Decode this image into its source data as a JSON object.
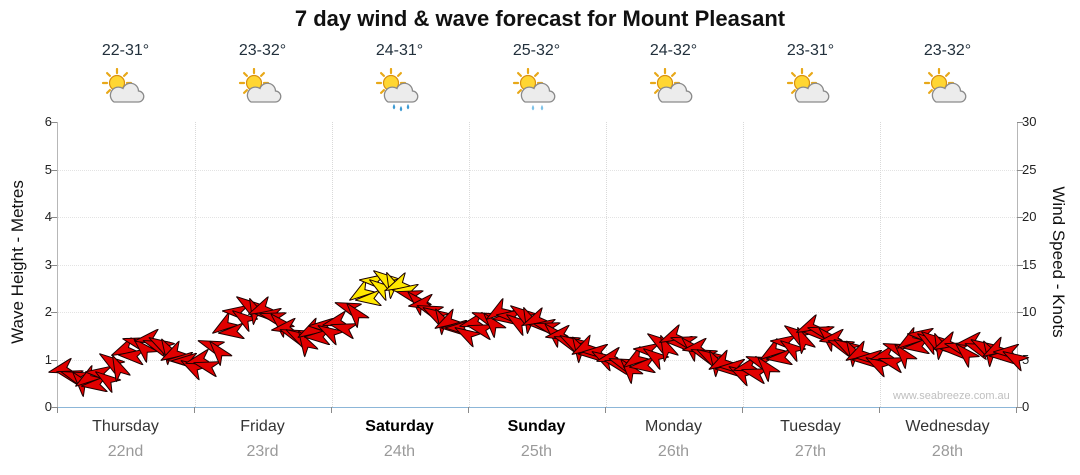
{
  "title": "7 day wind & wave forecast for Mount Pleasant",
  "watermark": "www.seabreeze.com.au",
  "axes": {
    "left_label": "Wave Height - Metres",
    "right_label": "Wind Speed - Knots",
    "left_ticks": [
      0,
      1,
      2,
      3,
      4,
      5,
      6
    ],
    "right_ticks": [
      0,
      5,
      10,
      15,
      20,
      25,
      30
    ]
  },
  "days": [
    {
      "name": "Thursday",
      "date": "22nd",
      "temp": "22-31°",
      "icon": "partly-cloudy",
      "bold": false
    },
    {
      "name": "Friday",
      "date": "23rd",
      "temp": "23-32°",
      "icon": "partly-cloudy",
      "bold": false
    },
    {
      "name": "Saturday",
      "date": "24th",
      "temp": "24-31°",
      "icon": "partly-cloudy-rain",
      "bold": true
    },
    {
      "name": "Sunday",
      "date": "25th",
      "temp": "25-32°",
      "icon": "partly-cloudy-shower",
      "bold": true
    },
    {
      "name": "Monday",
      "date": "26th",
      "temp": "24-32°",
      "icon": "partly-cloudy",
      "bold": false
    },
    {
      "name": "Tuesday",
      "date": "27th",
      "temp": "23-31°",
      "icon": "partly-cloudy",
      "bold": false
    },
    {
      "name": "Wednesday",
      "date": "28th",
      "temp": "23-32°",
      "icon": "partly-cloudy",
      "bold": false
    }
  ],
  "chart_data": {
    "type": "scatter",
    "marker": "wind-arrow",
    "title": "7 day wind & wave forecast for Mount Pleasant",
    "x_range_days": 7,
    "y_left": {
      "label": "Wave Height - Metres",
      "range": [
        0,
        6
      ],
      "ticks": [
        0,
        1,
        2,
        3,
        4,
        5,
        6
      ]
    },
    "y_right": {
      "label": "Wind Speed - Knots",
      "range": [
        0,
        30
      ],
      "ticks": [
        0,
        5,
        10,
        15,
        20,
        25,
        30
      ]
    },
    "grid": true,
    "sample_offsets_within_day": [
      0.03,
      0.12,
      0.21,
      0.3,
      0.39,
      0.48,
      0.57,
      0.66,
      0.75,
      0.84,
      0.93
    ],
    "direction_cycle_deg": [
      165,
      200,
      145,
      185,
      215,
      155,
      195,
      170,
      210,
      150,
      180
    ],
    "series": [
      {
        "name": "Wind speed (knots)",
        "days": [
          {
            "knots": [
              4.0,
              3.3,
              3.0,
              3.6,
              4.8,
              6.0,
              6.8,
              7.2,
              6.6,
              5.6,
              4.8
            ],
            "peak_idx": []
          },
          {
            "knots": [
              5.0,
              6.5,
              8.5,
              10.0,
              10.8,
              10.3,
              9.5,
              8.3,
              7.5,
              8.0,
              8.5
            ],
            "peak_idx": []
          },
          {
            "knots": [
              9.0,
              10.5,
              12.0,
              13.3,
              13.6,
              12.8,
              11.8,
              10.8,
              9.8,
              9.0,
              8.3
            ],
            "peak_idx": [
              2,
              3,
              4,
              5
            ]
          },
          {
            "knots": [
              8.8,
              9.5,
              10.0,
              9.6,
              9.9,
              9.2,
              8.4,
              7.6,
              6.8,
              6.2,
              5.8
            ],
            "peak_idx": []
          },
          {
            "knots": [
              5.2,
              4.6,
              5.0,
              6.0,
              7.0,
              7.4,
              6.9,
              6.2,
              5.4,
              4.6,
              4.2
            ],
            "peak_idx": []
          },
          {
            "knots": [
              4.2,
              4.8,
              5.8,
              6.8,
              7.8,
              8.4,
              8.0,
              7.2,
              6.4,
              5.6,
              5.2
            ],
            "peak_idx": []
          },
          {
            "knots": [
              5.4,
              6.2,
              7.0,
              7.6,
              7.2,
              6.6,
              6.3,
              6.8,
              6.4,
              6.0,
              5.8
            ],
            "peak_idx": []
          }
        ]
      }
    ],
    "colors": {
      "arrow": "#e10000",
      "arrow_peak": "#ffe800",
      "arrow_outline": "#1a0000",
      "axis_bottom": "#8cb6d8"
    }
  }
}
